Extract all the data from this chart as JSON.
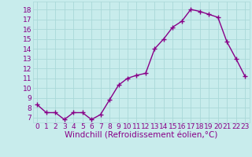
{
  "x": [
    0,
    1,
    2,
    3,
    4,
    5,
    6,
    7,
    8,
    9,
    10,
    11,
    12,
    13,
    14,
    15,
    16,
    17,
    18,
    19,
    20,
    21,
    22,
    23
  ],
  "y": [
    8.3,
    7.5,
    7.5,
    6.8,
    7.5,
    7.5,
    6.8,
    7.3,
    8.8,
    10.3,
    11.0,
    11.3,
    11.5,
    14.0,
    15.0,
    16.2,
    16.8,
    18.0,
    17.8,
    17.5,
    17.2,
    14.7,
    13.0,
    11.2
  ],
  "line_color": "#880088",
  "marker": "+",
  "marker_size": 4,
  "marker_linewidth": 1.0,
  "xlabel": "Windchill (Refroidissement éolien,°C)",
  "xlabel_fontsize": 7.5,
  "xtick_labels": [
    "0",
    "1",
    "2",
    "3",
    "4",
    "5",
    "6",
    "7",
    "8",
    "9",
    "10",
    "11",
    "12",
    "13",
    "14",
    "15",
    "16",
    "17",
    "18",
    "19",
    "20",
    "21",
    "22",
    "23"
  ],
  "ytick_values": [
    7,
    8,
    9,
    10,
    11,
    12,
    13,
    14,
    15,
    16,
    17,
    18
  ],
  "ylim": [
    6.5,
    18.8
  ],
  "xlim": [
    -0.5,
    23.5
  ],
  "bg_color": "#c8ecec",
  "grid_color": "#aad8d8",
  "tick_fontsize": 6.5,
  "linewidth": 1.0,
  "label_color": "#880088"
}
